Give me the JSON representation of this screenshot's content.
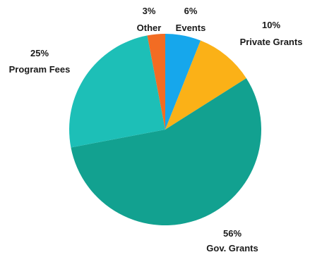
{
  "chart_data": {
    "type": "pie",
    "title": "",
    "start_angle_deg": 0,
    "direction": "clockwise",
    "slices": [
      {
        "label": "Events",
        "percent_label": "6%",
        "value": 6,
        "color": "#16a7ec"
      },
      {
        "label": "Private Grants",
        "percent_label": "10%",
        "value": 10,
        "color": "#fbb117"
      },
      {
        "label": "Gov. Grants",
        "percent_label": "56%",
        "value": 56,
        "color": "#12a190"
      },
      {
        "label": "Program Fees",
        "percent_label": "25%",
        "value": 25,
        "color": "#1dbfb7"
      },
      {
        "label": "Other",
        "percent_label": "3%",
        "value": 3,
        "color": "#f26c23"
      }
    ]
  }
}
